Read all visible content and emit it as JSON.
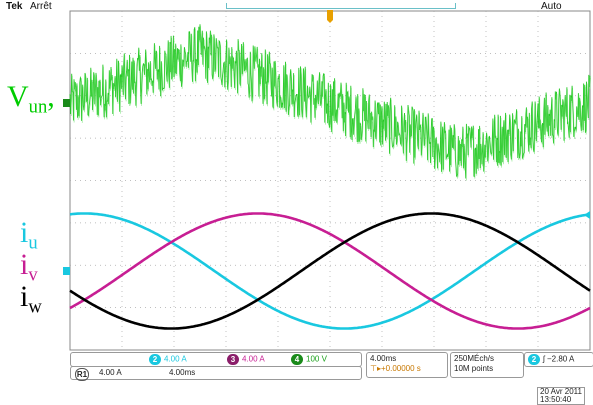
{
  "header": {
    "brand": "Tek",
    "state": "Arrêt",
    "trigger_mode": "Auto"
  },
  "labels": {
    "v_un": {
      "base": "V",
      "sub": "un",
      "suffix": ","
    },
    "i_u": {
      "base": "i",
      "sub": "u"
    },
    "i_v": {
      "base": "i",
      "sub": "v"
    },
    "i_w": {
      "base": "i",
      "sub": "w"
    }
  },
  "status": {
    "ch2_num": "2",
    "ch2_scale": "4.00 A",
    "ch3_num": "3",
    "ch3_scale": "4.00 A",
    "ch4_num": "4",
    "ch4_scale": "100 V",
    "ref_num": "R1",
    "ref_scale": "4.00 A",
    "ref_time": "4.00ms",
    "timebase": "4.00ms",
    "trigger_delay": "+0.00000 s",
    "sample_rate": "250MÉch/s",
    "record_length": "10M points",
    "trig_source": "2",
    "trig_level": "ʃ −2.80 A",
    "date": "20 Avr 2011",
    "time": "13:50:40"
  },
  "colors": {
    "v_un": "#00c000",
    "i_u": "#19c8e0",
    "i_v": "#c71e93",
    "i_w": "#000000",
    "trigger": "#e8a000",
    "grid": "#aaaaaa"
  },
  "chart_data": {
    "type": "line",
    "x_unit": "ms",
    "x_divisions": 10,
    "time_per_division_ms": 4.0,
    "xlim": [
      0,
      40
    ],
    "grid": true,
    "series": [
      {
        "name": "V_un",
        "channel": "4",
        "volts_per_division": 100,
        "description_visible": "PWM stepped waveform",
        "envelope_levels_div": [
          0.0,
          0.7,
          1.4,
          0.7,
          0.0,
          -0.7,
          -1.4,
          -0.7,
          0.0
        ]
      },
      {
        "name": "i_u",
        "channel": "2",
        "amplitude_div": 1.4,
        "period_ms": 40,
        "phase_deg": 80
      },
      {
        "name": "i_v",
        "channel": "3",
        "amplitude_div": 1.4,
        "period_ms": 40,
        "phase_deg": -40
      },
      {
        "name": "i_w",
        "channel": "R1",
        "amplitude_div": 1.4,
        "period_ms": 40,
        "phase_deg": 200
      }
    ]
  }
}
